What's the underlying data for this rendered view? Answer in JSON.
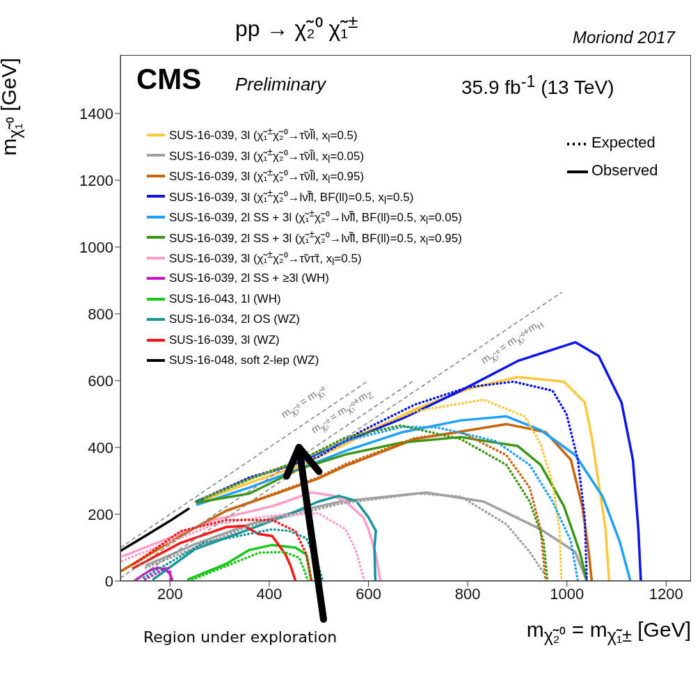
{
  "chart_data": {
    "type": "line",
    "title": "pp → χ̃₂⁰ χ̃₁$^{±}$",
    "xlabel": "m$_{χ̃₂⁰}$ = m$_{χ̃₁±}$ [GeV]",
    "ylabel": "m$_{χ̃₁⁰}$ [GeV]",
    "xlim": [
      100,
      1250
    ],
    "xticks": [
      200,
      400,
      600,
      800,
      1000,
      1200
    ],
    "ylim": [
      0,
      1575
    ],
    "yticks": [
      0,
      200,
      400,
      600,
      800,
      1000,
      1200,
      1400
    ],
    "legend": "top left",
    "annotations": [
      "CMS",
      "Preliminary",
      "35.9 fb$^{-1}$ (13 TeV)",
      "Moriond 2017",
      "Expected",
      "Observed",
      "Region under exploration",
      "m$_{χ̃₂⁰}$ = m$_{χ̃₁⁰}$",
      "m$_{χ̃₂⁰}$ = m$_{χ̃₁⁰}$+m$_{Z}$",
      "m$_{χ̃₂⁰}$ = m$_{χ̃₁⁰}$+m$_{H}$"
    ],
    "series": [
      {
        "name": "SUS-16-039, 3l (χ̃₁$^{±}$χ̃₂⁰→τ̃νl̃l, x$_{l}$=0.5)",
        "color": "#ffc83c",
        "line_style": "solid",
        "x": [
          253,
          360,
          460,
          560,
          693,
          800,
          901,
          994,
          1036,
          1050,
          1064,
          1078,
          1085
        ],
        "values": [
          235,
          294,
          345,
          415,
          514,
          575,
          611,
          597,
          535,
          431,
          294,
          155,
          0
        ]
      },
      {
        "name": "SUS-16-039, 3l (χ̃₁$^{±}$χ̃₂⁰→τ̃νl̃l, x$_{l}$=0.05)",
        "color": "#a0a0a0",
        "line_style": "solid",
        "x": [
          151,
          250,
          360,
          460,
          544,
          717,
          832,
          947,
          1017,
          1040
        ],
        "values": [
          46,
          110,
          170,
          210,
          238,
          265,
          238,
          155,
          87,
          0
        ]
      },
      {
        "name": "SUS-16-039, 3l (χ̃₁$^{±}$χ̃₂⁰→τ̃νl̃l, x$_{l}$=0.95)",
        "color": "#c8640a",
        "line_style": "solid",
        "x": [
          103,
          221,
          314,
          420,
          499,
          554,
          693,
          878,
          957,
          1008,
          1031,
          1044,
          1050
        ],
        "values": [
          31,
          135,
          211,
          265,
          307,
          345,
          425,
          470,
          446,
          363,
          224,
          87,
          0
        ]
      },
      {
        "name": "SUS-16-039, 3l (χ̃₁$^{±}$χ̃₂⁰→lν̃l̃l, BF(ll)=0.5, x$_{l}$=0.5)",
        "color": "#0a14f0",
        "line_style": "solid",
        "x": [
          253,
          360,
          450,
          554,
          669,
          786,
          901,
          1017,
          1064,
          1110,
          1133,
          1144,
          1149
        ],
        "values": [
          238,
          307,
          350,
          419,
          487,
          570,
          659,
          715,
          674,
          535,
          363,
          155,
          0
        ]
      },
      {
        "name": "SUS-16-039, 2l SS + 3l (χ̃₁$^{±}$χ̃₂⁰→lν̃l̃l, BF(ll)=0.5, x$_{l}$=0.05)",
        "color": "#1ea0ff",
        "line_style": "solid",
        "x": [
          253,
          360,
          460,
          554,
          669,
          786,
          878,
          947,
          1017,
          1072,
          1106,
          1128
        ],
        "values": [
          228,
          280,
          335,
          390,
          446,
          481,
          493,
          452,
          377,
          253,
          120,
          0
        ]
      },
      {
        "name": "SUS-16-039, 2l SS + 3l (χ̃₁$^{±}$χ̃₂⁰→lν̃l̃l, BF(ll)=0.5, x$_{l}$=0.95)",
        "color": "#3c9614",
        "line_style": "solid",
        "x": [
          253,
          360,
          460,
          554,
          669,
          786,
          901,
          947,
          994,
          1026,
          1040
        ],
        "values": [
          235,
          262,
          335,
          379,
          415,
          431,
          404,
          348,
          224,
          87,
          0
        ]
      },
      {
        "name": "SUS-16-039, 3l (χ̃₁$^{±}$χ̃₂⁰→τ̃ντ̃τ, x$_{l}$=0.5)",
        "color": "#ff9ec8",
        "line_style": "solid",
        "x": [
          103,
          200,
          290,
          406,
          485,
          530,
          554,
          590,
          600,
          615,
          624
        ],
        "values": [
          73,
          130,
          183,
          224,
          265,
          255,
          238,
          190,
          155,
          80,
          0
        ]
      },
      {
        "name": "SUS-16-039, 2l SS + ≥3l (WH)",
        "color": "#c814c8",
        "line_style": "solid",
        "x": [
          128,
          145,
          160,
          175,
          190,
          200,
          205
        ],
        "values": [
          0,
          18,
          32,
          40,
          35,
          22,
          0
        ]
      },
      {
        "name": "SUS-16-043, 1l (WH)",
        "color": "#14c814",
        "line_style": "solid",
        "x": [
          235,
          314,
          360,
          406,
          453,
          475,
          485
        ],
        "values": [
          4,
          52,
          93,
          108,
          100,
          79,
          0
        ]
      },
      {
        "name": "SUS-16-034, 2l OS (WZ)",
        "color": "#14969b",
        "line_style": "solid",
        "x": [
          165,
          250,
          360,
          440,
          499,
          540,
          575,
          600,
          615,
          612,
          614
        ],
        "values": [
          4,
          95,
          155,
          200,
          238,
          255,
          240,
          191,
          150,
          100,
          0
        ]
      },
      {
        "name": "SUS-16-039, 3l (WZ)",
        "color": "#ff1414",
        "line_style": "solid",
        "x": [
          124,
          221,
          314,
          350,
          378,
          406,
          433,
          443,
          453
        ],
        "values": [
          37,
          114,
          162,
          165,
          141,
          135,
          79,
          46,
          0
        ]
      },
      {
        "name": "SUS-16-048, soft 2-lep (WZ)",
        "color": "#000000",
        "line_style": "solid",
        "x": [
          100,
          150,
          200,
          239
        ],
        "values": [
          90,
          135,
          180,
          218
        ]
      },
      {
        "color": "#ffc83c",
        "line_style": "dotted",
        "x": [
          270,
          360,
          460,
          554,
          693,
          832,
          915,
          947,
          971,
          985,
          989
        ],
        "values": [
          250,
          305,
          360,
          425,
          508,
          543,
          493,
          410,
          294,
          155,
          0
        ]
      },
      {
        "color": "#a0a0a0",
        "line_style": "dotted",
        "x": [
          151,
          360,
          544,
          700,
          786,
          878,
          925,
          953
        ],
        "values": [
          40,
          165,
          232,
          262,
          253,
          170,
          87,
          25
        ]
      },
      {
        "color": "#c8640a",
        "line_style": "dotted",
        "x": [
          103,
          221,
          314,
          499,
          554,
          693,
          786,
          878,
          925,
          947,
          957
        ],
        "values": [
          31,
          135,
          211,
          310,
          350,
          428,
          446,
          377,
          280,
          155,
          0
        ]
      },
      {
        "color": "#0a14f0",
        "line_style": "dotted",
        "x": [
          253,
          360,
          499,
          582,
          693,
          800,
          892,
          971,
          999,
          1022,
          1036,
          1040
        ],
        "values": [
          238,
          310,
          372,
          446,
          528,
          580,
          597,
          570,
          501,
          363,
          191,
          0
        ]
      },
      {
        "color": "#1ea0ff",
        "line_style": "dotted",
        "x": [
          253,
          360,
          460,
          554,
          669,
          739,
          856,
          925,
          971,
          1008,
          1022
        ],
        "values": [
          238,
          305,
          360,
          420,
          462,
          460,
          419,
          348,
          238,
          120,
          0
        ]
      },
      {
        "color": "#3c9614",
        "line_style": "dotted",
        "x": [
          253,
          360,
          460,
          554,
          665,
          786,
          878,
          925,
          953,
          961
        ],
        "values": [
          238,
          305,
          360,
          430,
          466,
          425,
          348,
          238,
          120,
          0
        ]
      },
      {
        "color": "#ff9ec8",
        "line_style": "dotted",
        "x": [
          103,
          290,
          400,
          499,
          554,
          575,
          592
        ],
        "values": [
          60,
          170,
          195,
          203,
          155,
          90,
          0
        ]
      },
      {
        "color": "#c814c8",
        "line_style": "dotted",
        "x": [
          150,
          175,
          195,
          200,
          201
        ],
        "values": [
          5,
          25,
          42,
          30,
          0
        ]
      },
      {
        "color": "#14c814",
        "line_style": "dotted",
        "x": [
          245,
          330,
          380,
          430,
          460,
          470,
          478
        ],
        "values": [
          4,
          55,
          85,
          87,
          70,
          35,
          0
        ]
      },
      {
        "color": "#14969b",
        "line_style": "dotted",
        "x": [
          147,
          267,
          406,
          440,
          475,
          499,
          508
        ],
        "values": [
          10,
          114,
          155,
          150,
          128,
          46,
          0
        ]
      },
      {
        "color": "#ff1414",
        "line_style": "dotted",
        "x": [
          128,
          221,
          314,
          406,
          453,
          475,
          485
        ],
        "values": [
          52,
          149,
          183,
          183,
          149,
          79,
          0
        ]
      },
      {
        "color": "#808080",
        "line_style": "dashed",
        "x": [
          100,
          600
        ],
        "values": [
          100,
          600
        ]
      },
      {
        "color": "#808080",
        "line_style": "dashed",
        "x": [
          100,
          690
        ],
        "values": [
          9,
          599
        ]
      },
      {
        "color": "#808080",
        "line_style": "dashed",
        "x": [
          125,
          990
        ],
        "values": [
          0,
          865
        ]
      }
    ]
  }
}
